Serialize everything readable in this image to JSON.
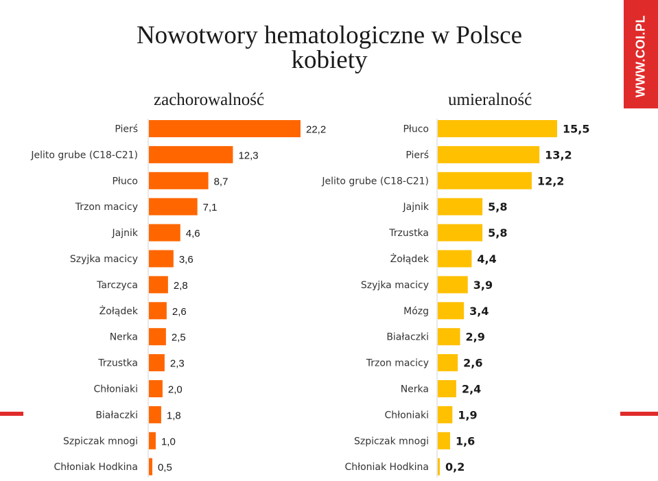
{
  "title": "Nowotwory hematologiczne w Polsce",
  "subtitle": "kobiety",
  "badge": "WWW.COI.PL",
  "colors": {
    "incidence_bar": "#FF6600",
    "mortality_bar": "#FFC000",
    "brand_red": "#E02B2B"
  },
  "chart_data": [
    {
      "type": "bar",
      "orientation": "horizontal",
      "title": "zachorowalność",
      "categories": [
        "Pierś",
        "Jelito grube (C18-C21)",
        "Płuco",
        "Trzon macicy",
        "Jajnik",
        "Szyjka macicy",
        "Tarczyca",
        "Żołądek",
        "Nerka",
        "Trzustka",
        "Chłoniaki",
        "Białaczki",
        "Szpiczak mnogi",
        "Chłoniak Hodkina"
      ],
      "values": [
        22.2,
        12.3,
        8.7,
        7.1,
        4.6,
        3.6,
        2.8,
        2.6,
        2.5,
        2.3,
        2.0,
        1.8,
        1.0,
        0.5
      ],
      "labels": [
        "22,2",
        "12,3",
        "8,7",
        "7,1",
        "4,6",
        "3,6",
        "2,8",
        "2,6",
        "2,5",
        "2,3",
        "2,0",
        "1,8",
        "1,0",
        "0,5"
      ]
    },
    {
      "type": "bar",
      "orientation": "horizontal",
      "title": "umieralność",
      "categories": [
        "Płuco",
        "Pierś",
        "Jelito grube (C18-C21)",
        "Jajnik",
        "Trzustka",
        "Żołądek",
        "Szyjka macicy",
        "Mózg",
        "Białaczki",
        "Trzon macicy",
        "Nerka",
        "Chłoniaki",
        "Szpiczak mnogi",
        "Chłoniak Hodkina"
      ],
      "values": [
        15.5,
        13.2,
        12.2,
        5.8,
        5.8,
        4.4,
        3.9,
        3.4,
        2.9,
        2.6,
        2.4,
        1.9,
        1.6,
        0.2
      ],
      "labels": [
        "15,5",
        "13,2",
        "12,2",
        "5,8",
        "5,8",
        "4,4",
        "3,9",
        "3,4",
        "2,9",
        "2,6",
        "2,4",
        "1,9",
        "1,6",
        "0,2"
      ]
    }
  ]
}
